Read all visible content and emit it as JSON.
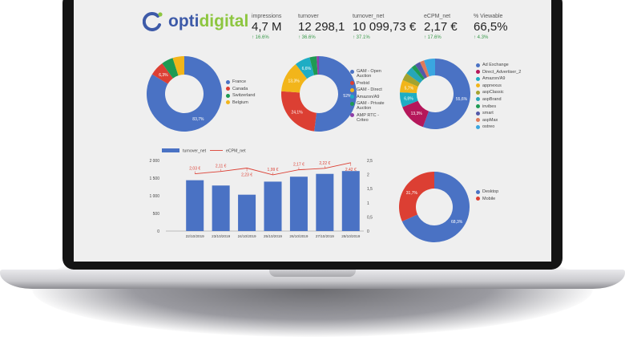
{
  "brand": {
    "logo_prefix": "opti",
    "logo_suffix": "digital"
  },
  "kpis": [
    {
      "label": "impressions",
      "value": "4,7 M",
      "delta": "↑ 16.6%"
    },
    {
      "label": "turnover",
      "value": "12 298,1",
      "delta": "↑ 36.6%"
    },
    {
      "label": "turnover_net",
      "value": "10 099,73 €",
      "delta": "↑ 37.1%"
    },
    {
      "label": "eCPM_net",
      "value": "2,17 €",
      "delta": "↑ 17.6%"
    },
    {
      "label": "% Viewable",
      "value": "66,5%",
      "delta": "↑ 4.3%"
    }
  ],
  "colors": {
    "blue": "#4a72c4",
    "red": "#dc3f33",
    "green": "#1e9a53",
    "yellow": "#f2b51a",
    "teal": "#1eadc4",
    "purple": "#8e3fa8",
    "magenta": "#b5175a",
    "olive": "#a4a32e",
    "indigo": "#5459a8",
    "orange": "#e07a5a",
    "sky": "#3aa6e0"
  },
  "chart_data": [
    {
      "type": "pie",
      "name": "country",
      "slices": [
        {
          "label": "France",
          "value": 83.7,
          "color": "#4a72c4",
          "shown": "83,7%"
        },
        {
          "label": "Canada",
          "value": 6.3,
          "color": "#dc3f33",
          "shown": "6,3%"
        },
        {
          "label": "Switzerland",
          "value": 5.0,
          "color": "#1e9a53"
        },
        {
          "label": "Belgium",
          "value": 5.0,
          "color": "#f2b51a"
        }
      ]
    },
    {
      "type": "pie",
      "name": "source",
      "slices": [
        {
          "label": "GAM - Open Auction",
          "value": 52,
          "color": "#4a72c4",
          "shown": "52%"
        },
        {
          "label": "Prebid",
          "value": 24.1,
          "color": "#dc3f33",
          "shown": "24,1%"
        },
        {
          "label": "GAM - Direct",
          "value": 13.3,
          "color": "#f2b51a",
          "shown": "13,3%"
        },
        {
          "label": "Amazon/A9",
          "value": 6.6,
          "color": "#1eadc4",
          "shown": "6,6%"
        },
        {
          "label": "GAM - Private Auction",
          "value": 3.0,
          "color": "#1e9a53"
        },
        {
          "label": "AMP RTC - Criteo",
          "value": 1.0,
          "color": "#8e3fa8"
        }
      ]
    },
    {
      "type": "pie",
      "name": "bidder",
      "slices": [
        {
          "label": "Ad Exchange",
          "value": 55.6,
          "color": "#4a72c4",
          "shown": "55,6%"
        },
        {
          "label": "Direct_Advertiser_2",
          "value": 13.3,
          "color": "#b5175a",
          "shown": "13,3%"
        },
        {
          "label": "Amazon/A9",
          "value": 6.8,
          "color": "#1eadc4",
          "shown": "6,8%"
        },
        {
          "label": "appnexus",
          "value": 5.7,
          "color": "#f2b51a",
          "shown": "5,7%"
        },
        {
          "label": "aspClassic",
          "value": 3.5,
          "color": "#a4a32e"
        },
        {
          "label": "aspBrand",
          "value": 3.5,
          "color": "#26a6b8"
        },
        {
          "label": "invibes",
          "value": 2.0,
          "color": "#1e9a53"
        },
        {
          "label": "smart",
          "value": 2.5,
          "color": "#5459a8"
        },
        {
          "label": "aspMax",
          "value": 2.0,
          "color": "#e07a5a"
        },
        {
          "label": "ostreo",
          "value": 5.1,
          "color": "#3aa6e0"
        }
      ]
    },
    {
      "type": "bar",
      "name": "daily",
      "categories": [
        "22/10/2019",
        "23/10/2019",
        "24/10/2019",
        "25/10/2019",
        "26/10/2019",
        "27/10/2019",
        "28/10/2019"
      ],
      "series": [
        {
          "name": "turnover_net",
          "type": "bar",
          "values": [
            1440,
            1290,
            1030,
            1400,
            1540,
            1620,
            1700
          ],
          "color": "#4a72c4"
        },
        {
          "name": "eCPM_net",
          "type": "line",
          "axis": "right",
          "values": [
            2.03,
            2.11,
            2.23,
            1.99,
            2.17,
            2.22,
            2.42
          ],
          "labels": [
            "2,03 €",
            "2,11 €",
            "2,23 €",
            "1,99 €",
            "2,17 €",
            "2,22 €",
            "2,42 €"
          ],
          "color": "#dc3f33"
        }
      ],
      "y_left": {
        "range": [
          0,
          2000
        ],
        "ticks": [
          "0",
          "500",
          "1 000",
          "1 500",
          "2 000"
        ]
      },
      "y_right": {
        "range": [
          0,
          2.5
        ],
        "ticks": [
          "0",
          "0,5",
          "1",
          "1,5",
          "2",
          "2,5"
        ]
      }
    },
    {
      "type": "pie",
      "name": "device",
      "slices": [
        {
          "label": "Desktop",
          "value": 68.3,
          "color": "#4a72c4",
          "shown": "68,3%"
        },
        {
          "label": "Mobile",
          "value": 31.7,
          "color": "#dc3f33",
          "shown": "31,7%"
        }
      ]
    }
  ]
}
